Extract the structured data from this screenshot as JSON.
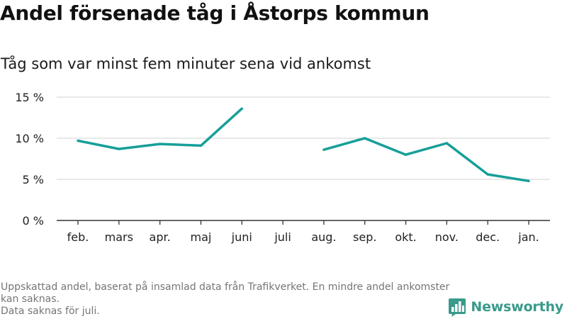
{
  "title": "Andel försenade tåg i Åstorps kommun",
  "subtitle": "Tåg som var minst fem minuter sena vid ankomst",
  "footnote": {
    "line1": "Uppskattad andel, baserat på insamlad data från Trafikverket. En mindre andel ankomster kan saknas.",
    "line2": "Data saknas för juli."
  },
  "brand": {
    "name": "Newsworthy",
    "color": "#3a9a8b",
    "logo_icon": "bar-chart-bubble-icon"
  },
  "colors": {
    "line": "#179f98",
    "grid": "#d9d9d9",
    "baseline": "#333333"
  },
  "chart_data": {
    "type": "line",
    "categories": [
      "feb.",
      "mars",
      "apr.",
      "maj",
      "juni",
      "juli",
      "aug.",
      "sep.",
      "okt.",
      "nov.",
      "dec.",
      "jan."
    ],
    "series": [
      {
        "values": [
          9.7,
          8.7,
          9.3,
          9.1,
          13.6,
          null,
          8.6,
          10.0,
          8.0,
          9.4,
          5.6,
          4.8
        ]
      }
    ],
    "ylim": [
      0,
      15
    ],
    "yticks": [
      0,
      5,
      10,
      15
    ],
    "ytick_labels": [
      "0 %",
      "5 %",
      "10 %",
      "15 %"
    ],
    "xlabel": "",
    "ylabel": "",
    "grid": true,
    "legend": "none"
  }
}
